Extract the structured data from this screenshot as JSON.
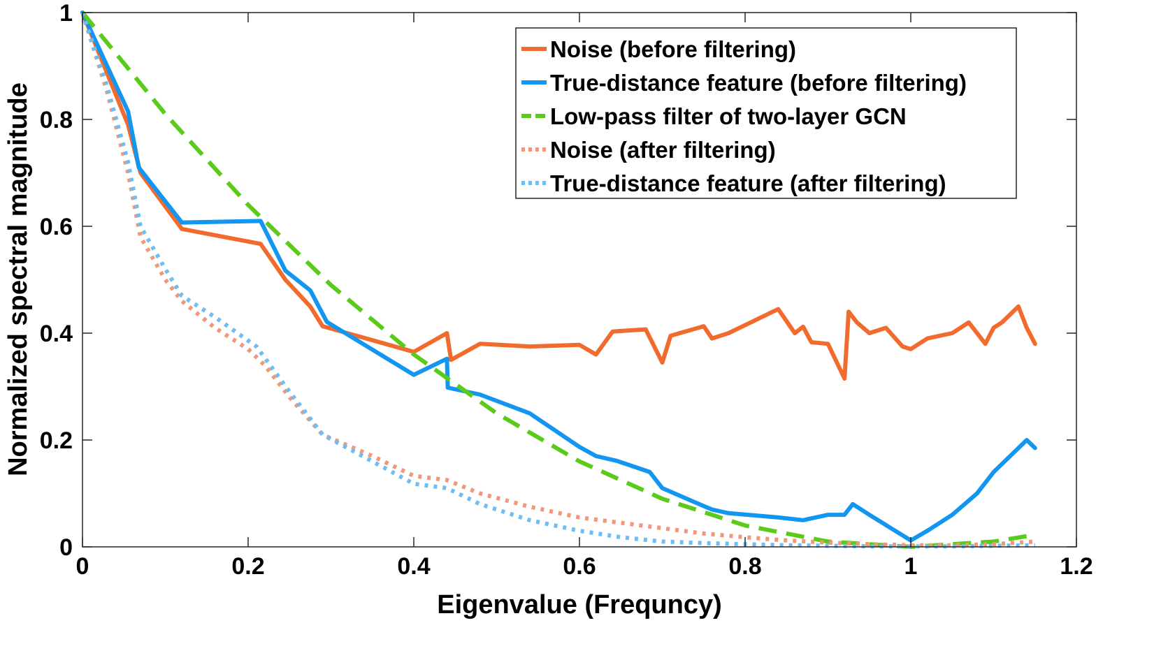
{
  "chart_data": {
    "type": "line",
    "title": "",
    "xlabel": "Eigenvalue (Frequncy)",
    "ylabel": "Normalized spectral magnitude",
    "xlim": [
      0,
      1.2
    ],
    "ylim": [
      0,
      1
    ],
    "xticks": [
      0,
      0.2,
      0.4,
      0.6,
      0.8,
      1,
      1.2
    ],
    "xtick_labels": [
      "0",
      "0.2",
      "0.4",
      "0.6",
      "0.8",
      "1",
      "1.2"
    ],
    "yticks": [
      0,
      0.2,
      0.4,
      0.6,
      0.8,
      1
    ],
    "ytick_labels": [
      "0",
      "0.2",
      "0.4",
      "0.6",
      "0.8",
      "1"
    ],
    "grid": false,
    "legend_position": "top-right",
    "series": [
      {
        "name": "Noise (before filtering)",
        "color": "#F26B2E",
        "style": "solid",
        "x": [
          0,
          0.055,
          0.07,
          0.12,
          0.215,
          0.245,
          0.275,
          0.29,
          0.4,
          0.44,
          0.445,
          0.48,
          0.54,
          0.6,
          0.62,
          0.64,
          0.68,
          0.7,
          0.71,
          0.75,
          0.76,
          0.78,
          0.84,
          0.86,
          0.87,
          0.88,
          0.9,
          0.92,
          0.925,
          0.935,
          0.95,
          0.97,
          0.99,
          1.0,
          1.02,
          1.05,
          1.07,
          1.09,
          1.1,
          1.11,
          1.13,
          1.14,
          1.15
        ],
        "y": [
          1,
          0.79,
          0.7,
          0.595,
          0.567,
          0.5,
          0.45,
          0.413,
          0.365,
          0.4,
          0.35,
          0.38,
          0.375,
          0.378,
          0.36,
          0.403,
          0.407,
          0.345,
          0.395,
          0.413,
          0.39,
          0.4,
          0.445,
          0.4,
          0.412,
          0.383,
          0.38,
          0.315,
          0.44,
          0.42,
          0.4,
          0.41,
          0.375,
          0.37,
          0.39,
          0.4,
          0.42,
          0.38,
          0.41,
          0.42,
          0.45,
          0.41,
          0.38
        ]
      },
      {
        "name": "True-distance feature (before filtering)",
        "color": "#1296F0",
        "style": "solid",
        "x": [
          0,
          0.055,
          0.068,
          0.12,
          0.215,
          0.245,
          0.275,
          0.295,
          0.4,
          0.44,
          0.441,
          0.48,
          0.54,
          0.6,
          0.62,
          0.645,
          0.685,
          0.7,
          0.74,
          0.76,
          0.78,
          0.84,
          0.87,
          0.9,
          0.92,
          0.93,
          0.95,
          1.0,
          1.02,
          1.05,
          1.08,
          1.1,
          1.12,
          1.14,
          1.15
        ],
        "y": [
          1,
          0.815,
          0.71,
          0.607,
          0.61,
          0.517,
          0.48,
          0.421,
          0.322,
          0.352,
          0.298,
          0.285,
          0.25,
          0.187,
          0.17,
          0.161,
          0.14,
          0.11,
          0.083,
          0.07,
          0.063,
          0.055,
          0.05,
          0.06,
          0.06,
          0.08,
          0.06,
          0.012,
          0.03,
          0.06,
          0.1,
          0.14,
          0.17,
          0.2,
          0.185
        ]
      },
      {
        "name": "Low-pass filter of two-layer GCN",
        "color": "#5ACB1A",
        "style": "dashed",
        "x": [
          0,
          0.1,
          0.2,
          0.3,
          0.4,
          0.5,
          0.6,
          0.7,
          0.8,
          0.9,
          1.0,
          1.1,
          1.15
        ],
        "y": [
          1,
          0.81,
          0.64,
          0.49,
          0.36,
          0.25,
          0.16,
          0.09,
          0.04,
          0.01,
          0,
          0.01,
          0.0225
        ]
      },
      {
        "name": "Noise (after filtering)",
        "color": "#F0987A",
        "style": "dotted",
        "x": [
          0,
          0.03,
          0.055,
          0.07,
          0.1,
          0.12,
          0.16,
          0.2,
          0.22,
          0.25,
          0.29,
          0.35,
          0.4,
          0.44,
          0.48,
          0.54,
          0.6,
          0.65,
          0.7,
          0.75,
          0.8,
          0.85,
          0.9,
          0.95,
          1.0,
          1.05,
          1.1,
          1.15
        ],
        "y": [
          1,
          0.85,
          0.7,
          0.58,
          0.5,
          0.46,
          0.41,
          0.37,
          0.34,
          0.28,
          0.21,
          0.17,
          0.133,
          0.125,
          0.1,
          0.075,
          0.055,
          0.045,
          0.035,
          0.025,
          0.018,
          0.012,
          0.008,
          0.005,
          0.003,
          0.003,
          0.005,
          0.01
        ]
      },
      {
        "name": "True-distance feature (after filtering)",
        "color": "#6FBDF2",
        "style": "dotted",
        "x": [
          0,
          0.03,
          0.055,
          0.07,
          0.1,
          0.12,
          0.16,
          0.21,
          0.25,
          0.29,
          0.35,
          0.4,
          0.44,
          0.48,
          0.54,
          0.6,
          0.65,
          0.7,
          0.75,
          0.8,
          0.85,
          0.9,
          0.95,
          1.0,
          1.05,
          1.1,
          1.15
        ],
        "y": [
          1,
          0.86,
          0.72,
          0.6,
          0.52,
          0.47,
          0.43,
          0.375,
          0.29,
          0.21,
          0.16,
          0.118,
          0.11,
          0.08,
          0.05,
          0.03,
          0.018,
          0.01,
          0.007,
          0.005,
          0.003,
          0.002,
          0.001,
          0.001,
          0.001,
          0.002,
          0.003
        ]
      }
    ]
  }
}
